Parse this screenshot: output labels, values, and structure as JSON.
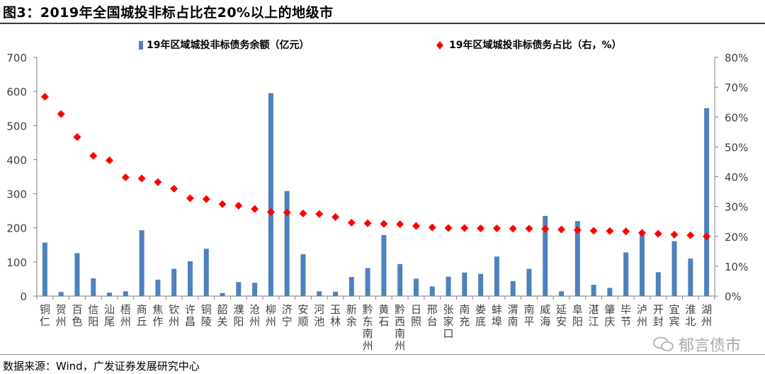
{
  "title": "图3：2019年全国城投非标占比在20%以上的地级市",
  "source": "数据来源：Wind，广发证券发展研究中心",
  "watermark": "郁言债市",
  "colors": {
    "bar": "#4f81bd",
    "marker": "#ff0000",
    "axis": "#808080"
  },
  "chart_data": {
    "type": "bar",
    "categories": [
      "铜仁",
      "贺州",
      "百色",
      "信阳",
      "汕尾",
      "梧州",
      "商丘",
      "焦作",
      "钦州",
      "许昌",
      "铜陵",
      "韶关",
      "濮阳",
      "沧州",
      "柳州",
      "济宁",
      "安顺",
      "河池",
      "玉林",
      "新余",
      "黔东南州",
      "黄石",
      "黔西南州",
      "日照",
      "邢台",
      "张家口",
      "南充",
      "娄底",
      "蚌埠",
      "渭南",
      "南平",
      "威海",
      "延安",
      "阜阳",
      "湛江",
      "肇庆",
      "毕节",
      "泸州",
      "开封",
      "宜宾",
      "淮北",
      "湖州"
    ],
    "series": [
      {
        "name": "19年区域城投非标债务余额（亿元）",
        "type": "bar",
        "axis": "left",
        "values": [
          157,
          12,
          126,
          52,
          10,
          14,
          193,
          48,
          80,
          102,
          139,
          9,
          41,
          39,
          595,
          308,
          123,
          14,
          13,
          56,
          82,
          179,
          94,
          51,
          28,
          57,
          69,
          65,
          116,
          44,
          80,
          235,
          14,
          220,
          33,
          24,
          128,
          190,
          70,
          161,
          110,
          551
        ]
      },
      {
        "name": "19年区域城投非标债务占比（右，%）",
        "type": "scatter",
        "axis": "right",
        "values": [
          66.8,
          61.0,
          53.3,
          47.0,
          45.5,
          39.8,
          39.4,
          38.2,
          36.0,
          32.8,
          32.5,
          30.8,
          30.3,
          29.2,
          28.2,
          28.0,
          27.7,
          27.5,
          26.5,
          24.6,
          24.4,
          24.2,
          24.1,
          23.5,
          23.0,
          22.8,
          22.8,
          22.7,
          22.7,
          22.6,
          22.6,
          22.5,
          22.3,
          22.1,
          21.9,
          21.8,
          21.7,
          21.2,
          20.9,
          20.6,
          20.4,
          20.0
        ]
      }
    ],
    "y_left": {
      "min": 0,
      "max": 700,
      "ticks": [
        "0",
        "100",
        "200",
        "300",
        "400",
        "500",
        "600",
        "700"
      ]
    },
    "y_right": {
      "min": 0,
      "max": 80,
      "ticks": [
        "0%",
        "10%",
        "20%",
        "30%",
        "40%",
        "50%",
        "60%",
        "70%",
        "80%"
      ]
    },
    "legend": [
      "19年区域城投非标债务余额（亿元）",
      "19年区域城投非标债务占比（右，%）"
    ],
    "legend_position": "top",
    "grid": false
  }
}
